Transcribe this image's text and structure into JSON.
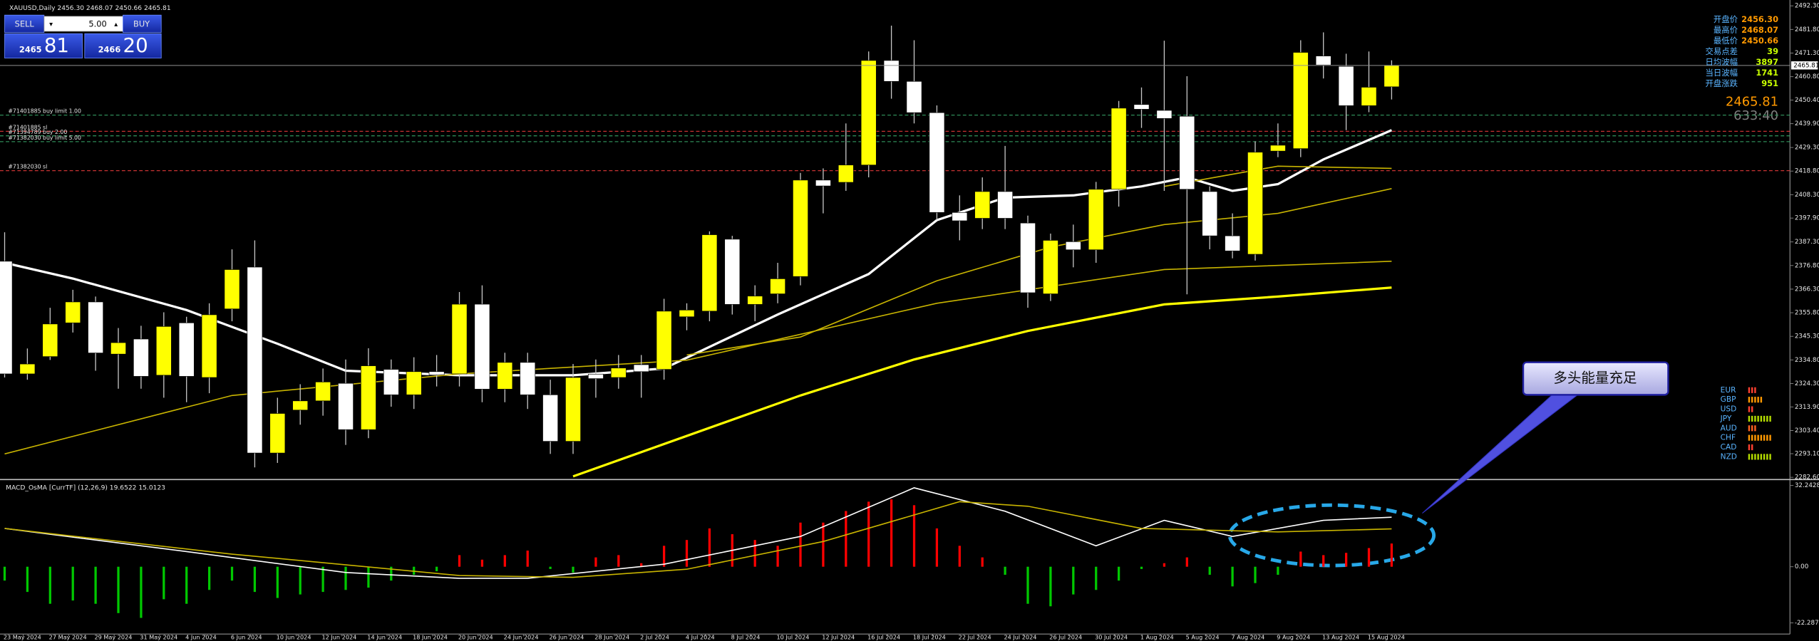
{
  "window": {
    "symbol_info": "XAUUSD,Daily 2456.30 2468.07 2450.66 2465.81"
  },
  "trade_panel": {
    "sell": "SELL",
    "buy": "BUY",
    "lot": "5.00",
    "sell_price_small": "2465",
    "sell_price_big": "81",
    "buy_price_small": "2466",
    "buy_price_big": "20"
  },
  "chart_data": [
    {
      "type": "candlestick",
      "up_color": "#ffff00",
      "down_color": "#ffffff",
      "wick_color": "#c8c8c8",
      "ylim": [
        2282.1,
        2494.9
      ],
      "yticks": [
        {
          "value": 2492.3,
          "label": "2492.30"
        },
        {
          "value": 2481.8,
          "label": "2481.80"
        },
        {
          "value": 2471.3,
          "label": "2471.30"
        },
        {
          "value": 2460.8,
          "label": "2460.80"
        },
        {
          "value": 2450.4,
          "label": "2450.40"
        },
        {
          "value": 2439.9,
          "label": "2439.90"
        },
        {
          "value": 2429.3,
          "label": "2429.30"
        },
        {
          "value": 2418.8,
          "label": "2418.80"
        },
        {
          "value": 2408.3,
          "label": "2408.30"
        },
        {
          "value": 2397.9,
          "label": "2397.90"
        },
        {
          "value": 2387.3,
          "label": "2387.30"
        },
        {
          "value": 2376.8,
          "label": "2376.80"
        },
        {
          "value": 2366.3,
          "label": "2366.30"
        },
        {
          "value": 2355.8,
          "label": "2355.80"
        },
        {
          "value": 2345.3,
          "label": "2345.30"
        },
        {
          "value": 2334.8,
          "label": "2334.80"
        },
        {
          "value": 2324.3,
          "label": "2324.30"
        },
        {
          "value": 2313.9,
          "label": "2313.90"
        },
        {
          "value": 2303.4,
          "label": "2303.40"
        },
        {
          "value": 2293.1,
          "label": "2293.10"
        },
        {
          "value": 2282.6,
          "label": "2282.60"
        }
      ],
      "open": [
        2378.7,
        2328.6,
        2336.3,
        2351.3,
        2360.6,
        2337.4,
        2344.1,
        2328.0,
        2351.3,
        2327.0,
        2357.5,
        2376.1,
        2293.4,
        2312.5,
        2316.6,
        2324.4,
        2303.8,
        2330.6,
        2319.3,
        2329.6,
        2328.6,
        2359.6,
        2321.8,
        2333.7,
        2319.3,
        2298.6,
        2328.5,
        2327.0,
        2332.7,
        2330.6,
        2354.0,
        2356.5,
        2388.5,
        2359.5,
        2364.2,
        2371.9,
        2414.8,
        2413.8,
        2421.5,
        2468.0,
        2458.7,
        2444.8,
        2400.4,
        2397.8,
        2409.7,
        2395.7,
        2364.2,
        2387.4,
        2383.8,
        2410.7,
        2448.4,
        2445.8,
        2443.2,
        2409.7,
        2390.0,
        2381.8,
        2427.7,
        2428.8,
        2470.0,
        2465.4,
        2447.9,
        2456.3
      ],
      "high": [
        2391.6,
        2339.9,
        2358.0,
        2366.0,
        2363.0,
        2349.0,
        2350.0,
        2356.0,
        2354.0,
        2360.0,
        2384.0,
        2388.0,
        2318.0,
        2324.0,
        2331.0,
        2335.0,
        2340.0,
        2335.0,
        2336.0,
        2337.0,
        2365.0,
        2368.0,
        2338.0,
        2338.0,
        2326.0,
        2333.0,
        2335.0,
        2337.0,
        2337.0,
        2362.0,
        2360.0,
        2392.0,
        2390.0,
        2368.0,
        2378.0,
        2418.0,
        2420.0,
        2440.0,
        2472.0,
        2483.5,
        2477.0,
        2448.0,
        2408.0,
        2416.0,
        2430.0,
        2399.0,
        2391.0,
        2395.0,
        2414.0,
        2450.0,
        2456.0,
        2476.8,
        2461.0,
        2412.0,
        2400.0,
        2432.0,
        2440.0,
        2477.0,
        2480.5,
        2471.0,
        2472.0,
        2468.07
      ],
      "low": [
        2327.0,
        2326.0,
        2334.8,
        2347.0,
        2330.0,
        2322.0,
        2322.0,
        2318.0,
        2316.0,
        2320.0,
        2352.0,
        2287.0,
        2289.0,
        2306.0,
        2310.0,
        2297.0,
        2300.0,
        2314.0,
        2313.0,
        2323.0,
        2323.0,
        2316.0,
        2316.0,
        2313.0,
        2293.0,
        2293.0,
        2318.0,
        2322.0,
        2318.0,
        2326.0,
        2348.0,
        2352.0,
        2355.0,
        2352.0,
        2360.0,
        2368.0,
        2400.0,
        2410.0,
        2416.0,
        2451.0,
        2440.0,
        2397.0,
        2388.0,
        2393.0,
        2393.0,
        2358.0,
        2361.0,
        2376.0,
        2378.0,
        2403.0,
        2438.0,
        2410.0,
        2364.0,
        2384.0,
        2380.0,
        2379.0,
        2425.0,
        2425.0,
        2460.0,
        2437.0,
        2445.0,
        2450.66
      ],
      "close": [
        2328.6,
        2333.0,
        2350.8,
        2360.6,
        2337.9,
        2342.5,
        2327.5,
        2349.7,
        2327.5,
        2354.9,
        2375.0,
        2293.4,
        2311.0,
        2316.6,
        2325.0,
        2303.8,
        2332.2,
        2319.3,
        2329.6,
        2328.2,
        2359.6,
        2321.8,
        2333.7,
        2319.3,
        2298.6,
        2327.0,
        2326.5,
        2331.2,
        2329.6,
        2356.5,
        2357.0,
        2390.5,
        2359.5,
        2363.2,
        2370.9,
        2414.8,
        2412.2,
        2421.5,
        2468.0,
        2458.7,
        2444.8,
        2400.4,
        2396.7,
        2409.7,
        2397.8,
        2364.7,
        2388.0,
        2383.8,
        2410.7,
        2446.8,
        2446.3,
        2442.2,
        2410.7,
        2390.0,
        2383.3,
        2427.2,
        2430.3,
        2471.6,
        2466.0,
        2447.9,
        2456.1,
        2465.81
      ],
      "lines": [
        {
          "color": "#ffffff",
          "width": 2,
          "x": [
            0,
            3,
            8,
            12,
            15,
            20,
            25,
            29,
            34,
            38,
            41,
            44,
            47,
            50,
            52,
            54,
            56,
            58,
            61
          ],
          "values": [
            2378,
            2371,
            2357,
            2342,
            2330,
            2328,
            2328,
            2331,
            2355,
            2373,
            2397,
            2407,
            2408,
            2412,
            2416,
            2410,
            2413,
            2424,
            2437
          ]
        },
        {
          "color": "#ffff00",
          "width": 2,
          "x": [
            25,
            30,
            35,
            40,
            45,
            51,
            56,
            61
          ],
          "values": [
            2283,
            2301,
            2319,
            2335,
            2347.7,
            2359.5,
            2363,
            2367
          ]
        },
        {
          "color": "#c8b400",
          "width": 1,
          "x": [
            0,
            10,
            20,
            30,
            41,
            51,
            61
          ],
          "values": [
            2293,
            2319,
            2328.6,
            2334.7,
            2360,
            2375,
            2378.7
          ]
        },
        {
          "color": "#c8b400",
          "width": 1,
          "x": [
            30,
            35,
            41,
            46,
            51,
            56,
            61
          ],
          "values": [
            2337,
            2345,
            2370,
            2385,
            2395,
            2400,
            2411
          ]
        },
        {
          "color": "#c8b400",
          "width": 1,
          "x": [
            51,
            56,
            61
          ],
          "values": [
            2412,
            2421,
            2420
          ]
        }
      ],
      "order_lines": [
        {
          "label": "#71401885 buy limit 1.00",
          "price": 2443.7,
          "color": "#2e8b57"
        },
        {
          "label": "#71401885 sl",
          "price": 2436.5,
          "color": "#c83232"
        },
        {
          "label": "#71394789 buy 2.00",
          "price": 2434.5,
          "color": "#2e8b57"
        },
        {
          "label": "#71382030 buy limit 5.00",
          "price": 2431.9,
          "color": "#2e8b57"
        },
        {
          "label": "#71382030 sl",
          "price": 2419.0,
          "color": "#c83232"
        }
      ],
      "x_labels": [
        "23 May 2024",
        "27 May 2024",
        "29 May 2024",
        "31 May 2024",
        "4 Jun 2024",
        "6 Jun 2024",
        "10 Jun 2024",
        "12 Jun 2024",
        "14 Jun 2024",
        "18 Jun 2024",
        "20 Jun 2024",
        "24 Jun 2024",
        "26 Jun 2024",
        "28 Jun 2024",
        "2 Jul 2024",
        "4 Jul 2024",
        "8 Jul 2024",
        "10 Jul 2024",
        "12 Jul 2024",
        "16 Jul 2024",
        "18 Jul 2024",
        "22 Jul 2024",
        "24 Jul 2024",
        "26 Jul 2024",
        "30 Jul 2024",
        "1 Aug 2024",
        "5 Aug 2024",
        "7 Aug 2024",
        "9 Aug 2024",
        "13 Aug 2024",
        "15 Aug 2024"
      ]
    },
    {
      "type": "macd",
      "title": "MACD_OsMA [CurrTF] (12,26,9) 19.6522 15.0123",
      "ylim": [
        -26.7,
        34.1
      ],
      "yticks": [
        32.2428,
        {
          "value": 0,
          "label": "0.00"
        },
        -22.2878
      ],
      "up_color": "#ff0000",
      "down_color": "#00c800",
      "values": [
        -5.5,
        -10,
        -14.7,
        -13.4,
        -14.7,
        -18.4,
        -20.3,
        -12.9,
        -14.7,
        -9.2,
        -5.5,
        -10,
        -12.4,
        -11,
        -10,
        -9.2,
        -8.3,
        -5.5,
        -3.2,
        -1.8,
        4.6,
        2.8,
        4.6,
        6.4,
        -0.9,
        -2.3,
        3.7,
        4.6,
        1.4,
        8.3,
        10.6,
        15.2,
        12.9,
        10.6,
        8.3,
        17.5,
        17.5,
        22.1,
        25.8,
        26.7,
        24.4,
        15.2,
        8.3,
        3.7,
        -3.2,
        -14.7,
        -15.7,
        -11,
        -9.2,
        -5.5,
        -0.9,
        1.4,
        3.7,
        -3.2,
        -7.8,
        -6.5,
        -3.2,
        6,
        4.6,
        5.5,
        7.4,
        9.2
      ],
      "lines": [
        {
          "color": "#ffffff",
          "x": [
            0,
            8,
            15,
            20,
            23,
            29,
            35,
            40,
            44,
            48,
            51,
            54,
            58,
            61
          ],
          "values": [
            15.2,
            6,
            -2.3,
            -4.6,
            -4.6,
            1,
            12,
            31.3,
            22,
            8.3,
            18.4,
            12,
            18.4,
            19.65
          ]
        },
        {
          "color": "#c8b400",
          "x": [
            0,
            10,
            20,
            25,
            30,
            36,
            42,
            45,
            50,
            56,
            61
          ],
          "values": [
            15.2,
            5,
            -3.5,
            -4.2,
            -1,
            10,
            25.8,
            24,
            15.2,
            13.8,
            15
          ]
        }
      ]
    }
  ],
  "info_panel": {
    "rows": [
      {
        "label": "开盘价",
        "value": "2456.30",
        "color": "#ff9900"
      },
      {
        "label": "最高价",
        "value": "2468.07",
        "color": "#ff9900"
      },
      {
        "label": "最低价",
        "value": "2450.66",
        "color": "#ff9900"
      },
      {
        "label": "交易点差",
        "value": "39",
        "color": "#c8ff00"
      },
      {
        "label": "日均波幅",
        "value": "3897",
        "color": "#c8ff00"
      },
      {
        "label": "当日波幅",
        "value": "1741",
        "color": "#c8ff00"
      },
      {
        "label": "开盘涨跌",
        "value": "951",
        "color": "#c8ff00"
      }
    ],
    "price": "2465.81",
    "countdown": "633:40"
  },
  "currency_strength": [
    {
      "name": "EUR",
      "level": 3,
      "color": "#ff4030"
    },
    {
      "name": "GBP",
      "level": 5,
      "color": "#ff9900"
    },
    {
      "name": "USD",
      "level": 2,
      "color": "#ff4030"
    },
    {
      "name": "JPY",
      "level": 8,
      "color": "#b4dc00"
    },
    {
      "name": "AUD",
      "level": 3,
      "color": "#ff6020"
    },
    {
      "name": "CHF",
      "level": 8,
      "color": "#ff9900"
    },
    {
      "name": "CAD",
      "level": 2,
      "color": "#ff4030"
    },
    {
      "name": "NZD",
      "level": 8,
      "color": "#b4dc00"
    }
  ],
  "annotation": {
    "text": "多头能量充足"
  }
}
